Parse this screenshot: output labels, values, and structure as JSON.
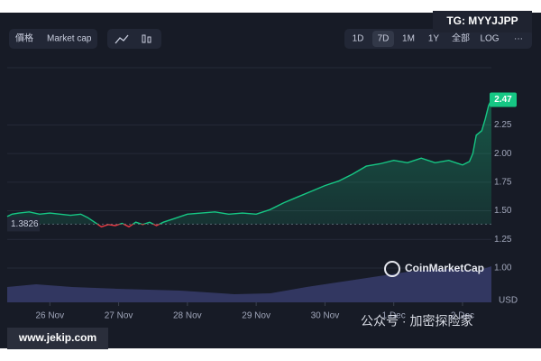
{
  "chart_data": {
    "type": "line",
    "x": [
      -0.62,
      -0.55,
      -0.45,
      -0.3,
      -0.15,
      0,
      0.15,
      0.3,
      0.45,
      0.55,
      0.65,
      0.75,
      0.85,
      0.95,
      1.05,
      1.15,
      1.25,
      1.35,
      1.45,
      1.55,
      1.65,
      1.8,
      2.0,
      2.2,
      2.4,
      2.6,
      2.8,
      3.0,
      3.2,
      3.4,
      3.6,
      3.8,
      4.0,
      4.2,
      4.4,
      4.6,
      4.8,
      5.0,
      5.2,
      5.4,
      5.6,
      5.8,
      6.0,
      6.1,
      6.15,
      6.2,
      6.28,
      6.33,
      6.38,
      6.42
    ],
    "series": [
      {
        "name": "Price",
        "color": "#16c784",
        "below_color": "#ea3943",
        "values": [
          1.45,
          1.47,
          1.48,
          1.49,
          1.47,
          1.48,
          1.47,
          1.46,
          1.47,
          1.44,
          1.4,
          1.36,
          1.38,
          1.37,
          1.39,
          1.36,
          1.4,
          1.38,
          1.4,
          1.37,
          1.4,
          1.43,
          1.47,
          1.48,
          1.49,
          1.47,
          1.48,
          1.47,
          1.51,
          1.57,
          1.62,
          1.67,
          1.72,
          1.76,
          1.82,
          1.89,
          1.91,
          1.94,
          1.92,
          1.96,
          1.92,
          1.94,
          1.9,
          1.93,
          2.0,
          2.16,
          2.2,
          2.3,
          2.42,
          2.47
        ]
      }
    ],
    "baseline": 1.3826,
    "xlim": [
      -0.62,
      6.42
    ],
    "xticks": [
      {
        "value": 0,
        "label": "26 Nov"
      },
      {
        "value": 1,
        "label": "27 Nov"
      },
      {
        "value": 2,
        "label": "28 Nov"
      },
      {
        "value": 3,
        "label": "29 Nov"
      },
      {
        "value": 4,
        "label": "30 Nov"
      },
      {
        "value": 5,
        "label": "1 Dec"
      },
      {
        "value": 6,
        "label": "2 Dec"
      }
    ],
    "ylim": [
      0.7,
      2.75
    ],
    "yticks": [
      {
        "value": 1,
        "label": "1.00"
      },
      1.25,
      {
        "value": 1.5,
        "label": "1.50"
      },
      1.75,
      {
        "value": 2,
        "label": "2.00"
      },
      2.25
    ],
    "y_unit": "USD",
    "grid": true
  },
  "toolbar": {
    "left": [
      "價格",
      "Market cap"
    ],
    "ranges": [
      "1D",
      "7D",
      "1M",
      "1Y",
      "全部",
      "LOG",
      "···"
    ],
    "active_range": "7D"
  },
  "watermarks": {
    "brand": "CoinMarketCap",
    "tg": "TG: MYYJJPP",
    "site": "www.jekip.com",
    "wechat": "公众号 · 加密探险家"
  }
}
